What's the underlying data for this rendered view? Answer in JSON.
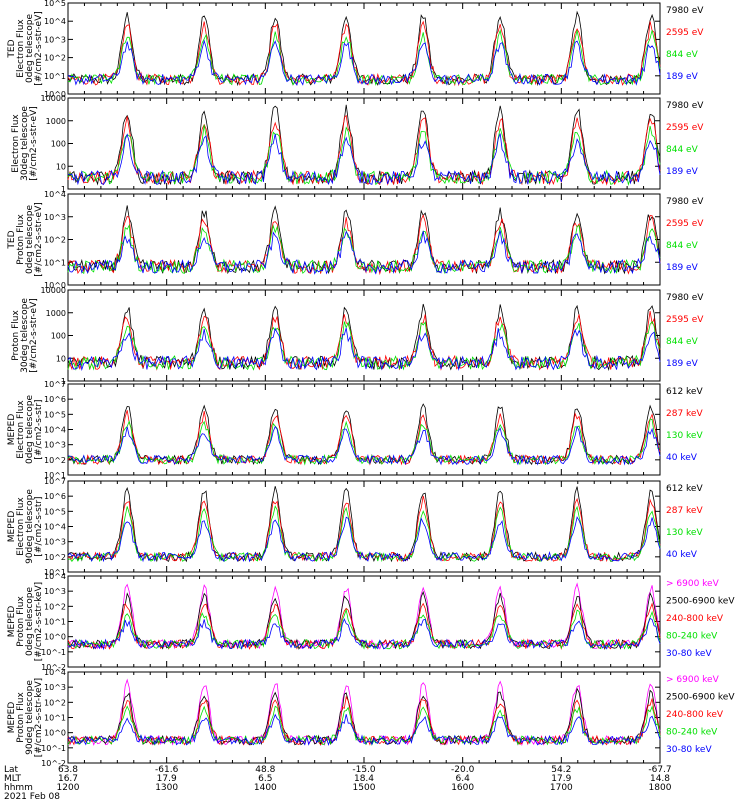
{
  "colors": {
    "red": "#ff0000",
    "green": "#00e000",
    "blue": "#0000ff",
    "black": "#000000",
    "magenta": "#ff00ff"
  },
  "bottom_axis": {
    "row_labels": [
      "Lat",
      "MLT",
      "hhmm"
    ],
    "date": "2021 Feb 08",
    "columns": [
      {
        "lat": "63.8",
        "mlt": "16.7",
        "hhmm": "1200"
      },
      {
        "lat": "-61.6",
        "mlt": "17.9",
        "hhmm": "1300"
      },
      {
        "lat": "48.8",
        "mlt": "6.5",
        "hhmm": "1400"
      },
      {
        "lat": "-15.0",
        "mlt": "18.4",
        "hhmm": "1500"
      },
      {
        "lat": "-20.0",
        "mlt": "6.4",
        "hhmm": "1600"
      },
      {
        "lat": "54.2",
        "mlt": "17.9",
        "hhmm": "1700"
      },
      {
        "lat": "-67.7",
        "mlt": "14.8",
        "hhmm": "1800"
      }
    ]
  },
  "chart_data": [
    {
      "type": "line",
      "ylabel": [
        "TED",
        "Electron Flux",
        "0deg telescope",
        "[#/cm2-s-str-eV]"
      ],
      "yscale": "log",
      "ylim_exp": [
        0,
        5
      ],
      "tick_labels": [
        "10^0",
        "10^1",
        "10^2",
        "10^3",
        "10^4",
        "10^5"
      ],
      "tick_exps": [
        0,
        1,
        2,
        3,
        4,
        5
      ],
      "legend": [
        {
          "name": "7980 eV",
          "color": "black"
        },
        {
          "name": "2595 eV",
          "color": "red"
        },
        {
          "name": "844 eV",
          "color": "green"
        },
        {
          "name": "189 eV",
          "color": "blue"
        }
      ]
    },
    {
      "type": "line",
      "ylabel": [
        "Electron Flux",
        "30deg telescope",
        "[#/cm2-s-str-eV]"
      ],
      "yscale": "log",
      "ylim_exp": [
        0,
        4
      ],
      "tick_labels": [
        "1",
        "10",
        "100",
        "1000",
        "10000"
      ],
      "tick_exps": [
        0,
        1,
        2,
        3,
        4
      ],
      "legend": [
        {
          "name": "7980 eV",
          "color": "black"
        },
        {
          "name": "2595 eV",
          "color": "red"
        },
        {
          "name": "844 eV",
          "color": "green"
        },
        {
          "name": "189 eV",
          "color": "blue"
        }
      ]
    },
    {
      "type": "line",
      "ylabel": [
        "TED",
        "Proton Flux",
        "0deg telescope",
        "[#/cm2-s-str-eV]"
      ],
      "yscale": "log",
      "ylim_exp": [
        0,
        4
      ],
      "tick_labels": [
        "10^0",
        "10^1",
        "10^2",
        "10^3",
        "10^4"
      ],
      "tick_exps": [
        0,
        1,
        2,
        3,
        4
      ],
      "legend": [
        {
          "name": "7980 eV",
          "color": "black"
        },
        {
          "name": "2595 eV",
          "color": "red"
        },
        {
          "name": "844 eV",
          "color": "green"
        },
        {
          "name": "189 eV",
          "color": "blue"
        }
      ]
    },
    {
      "type": "line",
      "ylabel": [
        "Proton Flux",
        "30deg telescope",
        "[#/cm2-s-str-eV]"
      ],
      "yscale": "log",
      "ylim_exp": [
        0,
        4
      ],
      "tick_labels": [
        "1",
        "10",
        "100",
        "1000",
        "10000"
      ],
      "tick_exps": [
        0,
        1,
        2,
        3,
        4
      ],
      "legend": [
        {
          "name": "7980 eV",
          "color": "black"
        },
        {
          "name": "2595 eV",
          "color": "red"
        },
        {
          "name": "844 eV",
          "color": "green"
        },
        {
          "name": "189 eV",
          "color": "blue"
        }
      ]
    },
    {
      "type": "line",
      "ylabel": [
        "MEPED",
        "Electron Flux",
        "0deg telescope",
        "[#/cm2-s-str]"
      ],
      "yscale": "log",
      "ylim_exp": [
        1,
        7
      ],
      "tick_labels": [
        "10^1",
        "10^2",
        "10^3",
        "10^4",
        "10^5",
        "10^6",
        "10^7"
      ],
      "tick_exps": [
        1,
        2,
        3,
        4,
        5,
        6,
        7
      ],
      "legend": [
        {
          "name": "612 keV",
          "color": "black"
        },
        {
          "name": "287 keV",
          "color": "red"
        },
        {
          "name": "130 keV",
          "color": "green"
        },
        {
          "name": "40 keV",
          "color": "blue"
        }
      ]
    },
    {
      "type": "line",
      "ylabel": [
        "MEPED",
        "Electron Flux",
        "90deg telescope",
        "[#/cm2-s-str]"
      ],
      "yscale": "log",
      "ylim_exp": [
        1,
        7
      ],
      "tick_labels": [
        "10^1",
        "10^2",
        "10^3",
        "10^4",
        "10^5",
        "10^6",
        "10^7"
      ],
      "tick_exps": [
        1,
        2,
        3,
        4,
        5,
        6,
        7
      ],
      "legend": [
        {
          "name": "612 keV",
          "color": "black"
        },
        {
          "name": "287 keV",
          "color": "red"
        },
        {
          "name": "130 keV",
          "color": "green"
        },
        {
          "name": "40 keV",
          "color": "blue"
        }
      ]
    },
    {
      "type": "line",
      "ylabel": [
        "MEPED",
        "Proton Flux",
        "0deg telescope",
        "[#/cm2-s-str-keV]"
      ],
      "yscale": "log",
      "ylim_exp": [
        -2,
        4
      ],
      "tick_labels": [
        "10^-2",
        "10^-1",
        "10^0",
        "10^1",
        "10^2",
        "10^3",
        "10^4"
      ],
      "tick_exps": [
        -2,
        -1,
        0,
        1,
        2,
        3,
        4
      ],
      "legend": [
        {
          "name": "> 6900 keV",
          "color": "magenta"
        },
        {
          "name": "2500-6900 keV",
          "color": "black"
        },
        {
          "name": "240-800 keV",
          "color": "red"
        },
        {
          "name": "80-240 keV",
          "color": "green"
        },
        {
          "name": "30-80 keV",
          "color": "blue"
        }
      ]
    },
    {
      "type": "line",
      "ylabel": [
        "MEPED",
        "Proton Flux",
        "90deg telescope",
        "[#/cm2-s-str-keV]"
      ],
      "yscale": "log",
      "ylim_exp": [
        -2,
        4
      ],
      "tick_labels": [
        "10^-2",
        "10^-1",
        "10^0",
        "10^1",
        "10^2",
        "10^3",
        "10^4"
      ],
      "tick_exps": [
        -2,
        -1,
        0,
        1,
        2,
        3,
        4
      ],
      "legend": [
        {
          "name": "> 6900 keV",
          "color": "magenta"
        },
        {
          "name": "2500-6900 keV",
          "color": "black"
        },
        {
          "name": "240-800 keV",
          "color": "red"
        },
        {
          "name": "80-240 keV",
          "color": "green"
        },
        {
          "name": "30-80 keV",
          "color": "blue"
        }
      ]
    }
  ]
}
